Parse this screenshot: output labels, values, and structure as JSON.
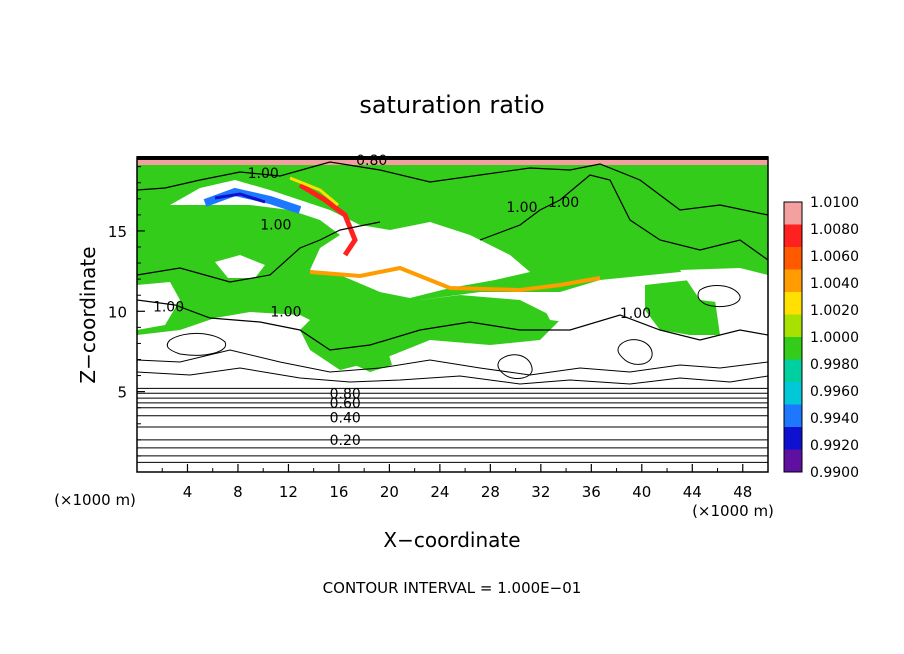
{
  "chart_data": {
    "type": "heatmap",
    "title": "saturation ratio",
    "xlabel": "X−coordinate",
    "ylabel": "Z−coordinate",
    "x_unit_left": "(×1000 m)",
    "x_unit_right": "(×1000 m)",
    "xlim": [
      0,
      50
    ],
    "ylim": [
      0,
      19.6
    ],
    "x_ticks": [
      4,
      8,
      12,
      16,
      20,
      24,
      28,
      32,
      36,
      40,
      44,
      48
    ],
    "y_ticks": [
      5,
      10,
      15
    ],
    "footnote": "CONTOUR INTERVAL = 1.000E−01",
    "colorbar": {
      "levels": [
        "1.0100",
        "1.0080",
        "1.0060",
        "1.0040",
        "1.0020",
        "1.0000",
        "0.9980",
        "0.9960",
        "0.9940",
        "0.9920",
        "0.9900"
      ],
      "colors": [
        "#f4a0a0",
        "#ff2020",
        "#ff5a00",
        "#ff9c00",
        "#ffe000",
        "#a8e000",
        "#33cc1a",
        "#00d0a0",
        "#00c8d8",
        "#1e78ff",
        "#1010d0",
        "#6010a0"
      ]
    },
    "contour_labels": [
      {
        "text": "0.80",
        "x": 18.6,
        "y": 19.4
      },
      {
        "text": "1.00",
        "x": 10.0,
        "y": 18.6
      },
      {
        "text": "1.00",
        "x": 30.5,
        "y": 16.5
      },
      {
        "text": "1.00",
        "x": 33.8,
        "y": 16.8
      },
      {
        "text": "1.00",
        "x": 11.0,
        "y": 15.4
      },
      {
        "text": "1.00",
        "x": 11.8,
        "y": 10.0
      },
      {
        "text": "1.00",
        "x": 2.5,
        "y": 10.3
      },
      {
        "text": "1.00",
        "x": 39.5,
        "y": 9.9
      },
      {
        "text": "0.80",
        "x": 16.5,
        "y": 4.9
      },
      {
        "text": "0.60",
        "x": 16.5,
        "y": 4.3
      },
      {
        "text": "0.40",
        "x": 16.5,
        "y": 3.4
      },
      {
        "text": "0.20",
        "x": 16.5,
        "y": 2.0
      }
    ],
    "background_isolines": [
      0.6,
      1.0,
      1.5,
      2.0,
      2.8,
      3.5,
      4.0,
      4.3,
      4.6,
      4.9,
      5.2
    ]
  }
}
